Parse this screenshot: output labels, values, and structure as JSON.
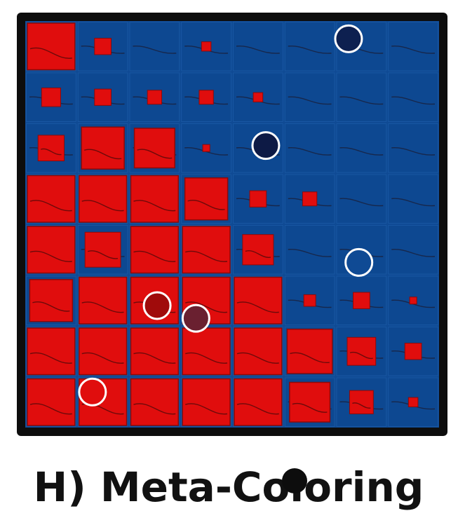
{
  "caption": "H) Meta-Coloring",
  "colors": {
    "frame": "#0d0d0d",
    "background_blue": "#0f4a94",
    "cell_blue": "#0d4891",
    "cell_red": "#e00d0d",
    "cell_red_edge": "#8b0a0a",
    "trace": "#1a1f3a",
    "dot_edge": "#ffffff"
  },
  "matrix": {
    "rows": 8,
    "cols": 8,
    "cell_red_fraction": [
      [
        1.0,
        0.35,
        0.0,
        0.2,
        0.0,
        0.0,
        0.0,
        0.0
      ],
      [
        0.4,
        0.35,
        0.3,
        0.3,
        0.2,
        0.0,
        0.0,
        0.0
      ],
      [
        0.55,
        0.9,
        0.85,
        0.15,
        0.0,
        0.0,
        0.0,
        0.0
      ],
      [
        1.0,
        1.0,
        1.0,
        0.9,
        0.35,
        0.3,
        0.0,
        0.0
      ],
      [
        1.0,
        0.75,
        1.0,
        1.0,
        0.65,
        0.0,
        0.0,
        0.0
      ],
      [
        0.9,
        1.0,
        1.0,
        1.0,
        1.0,
        0.25,
        0.35,
        0.15
      ],
      [
        1.0,
        1.0,
        1.0,
        1.0,
        1.0,
        0.95,
        0.6,
        0.35
      ],
      [
        1.0,
        1.0,
        1.0,
        1.0,
        1.0,
        0.85,
        0.5,
        0.2
      ]
    ]
  },
  "markers": [
    {
      "label": "marker-1",
      "row": 0.35,
      "col": 6.25,
      "fill": "#0d2050"
    },
    {
      "label": "marker-2",
      "row": 2.45,
      "col": 4.65,
      "fill": "#0d1a45"
    },
    {
      "label": "marker-3",
      "row": 4.75,
      "col": 6.45,
      "fill": "#0f4a94"
    },
    {
      "label": "marker-4",
      "row": 5.6,
      "col": 2.55,
      "fill": "#a00b0b"
    },
    {
      "label": "marker-5",
      "row": 5.85,
      "col": 3.3,
      "fill": "#6a2030"
    },
    {
      "label": "marker-6",
      "row": 7.3,
      "col": 1.3,
      "fill": "#e00d0d"
    }
  ]
}
